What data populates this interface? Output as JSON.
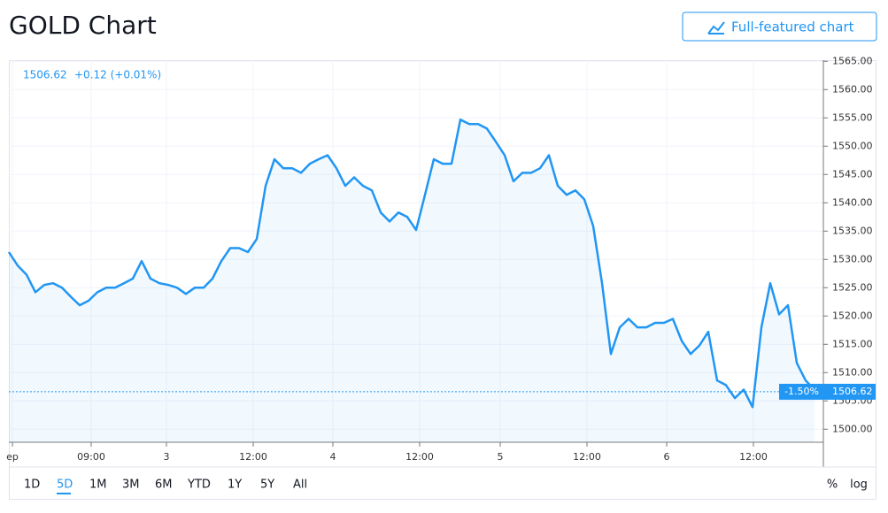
{
  "header": {
    "title": "GOLD Chart",
    "button": "Full-featured chart"
  },
  "chart_data": {
    "type": "line",
    "readout": {
      "price": "1506.62",
      "change": "+0.12 (+0.01%)"
    },
    "last_price": 1506.62,
    "last_label": "1506.62",
    "change_tag": "-1.50%",
    "x": [
      0,
      1,
      2,
      3,
      4,
      5,
      6,
      7,
      8,
      9,
      10,
      11,
      12,
      13,
      14,
      15,
      16,
      17,
      18,
      19,
      20,
      21,
      22,
      23,
      24,
      25,
      26,
      27,
      28,
      29,
      30,
      31,
      32,
      33,
      34,
      35,
      36,
      37,
      38,
      39,
      40,
      41,
      42,
      43,
      44,
      45,
      46,
      47,
      48,
      49,
      50,
      51,
      52,
      53,
      54,
      55,
      56,
      57,
      58,
      59,
      60,
      61,
      62,
      63,
      64,
      65,
      66,
      67,
      68,
      69,
      70,
      71,
      72,
      73,
      74,
      75,
      76,
      77,
      78,
      79,
      80,
      81,
      82,
      83,
      84,
      85,
      86,
      87,
      88,
      89,
      90,
      91
    ],
    "series": [
      {
        "name": "GOLD",
        "color": "#2196f3",
        "values": [
          1531.3,
          1528.9,
          1527.3,
          1524.2,
          1525.5,
          1525.8,
          1525.0,
          1523.4,
          1521.9,
          1522.7,
          1524.2,
          1525.0,
          1525.0,
          1525.8,
          1526.6,
          1529.7,
          1526.6,
          1525.8,
          1525.5,
          1525.0,
          1523.9,
          1525.0,
          1525.0,
          1526.6,
          1529.7,
          1532.0,
          1532.0,
          1531.3,
          1533.6,
          1543.0,
          1547.7,
          1546.1,
          1546.1,
          1545.3,
          1546.9,
          1547.7,
          1548.4,
          1546.1,
          1543.0,
          1544.5,
          1543.0,
          1542.2,
          1538.3,
          1536.7,
          1538.3,
          1537.5,
          1535.2,
          1541.4,
          1547.7,
          1546.9,
          1546.9,
          1554.7,
          1553.9,
          1553.9,
          1553.1,
          1550.8,
          1548.4,
          1543.8,
          1545.3,
          1545.3,
          1546.1,
          1548.4,
          1543.0,
          1541.4,
          1542.2,
          1540.6,
          1535.9,
          1525.8,
          1513.3,
          1518.0,
          1519.5,
          1518.0,
          1518.0,
          1518.8,
          1518.8,
          1519.5,
          1515.6,
          1513.3,
          1514.8,
          1517.2,
          1508.6,
          1507.8,
          1505.5,
          1507.0,
          1503.9,
          1518.0,
          1525.8,
          1520.3,
          1521.9,
          1511.7,
          1508.6,
          1507.0
        ]
      }
    ],
    "xlim": [
      0,
      92
    ],
    "xticks": [
      {
        "value": 0.4,
        "label": "ep"
      },
      {
        "value": 9.3,
        "label": "09:00"
      },
      {
        "value": 17.8,
        "label": "3"
      },
      {
        "value": 27.6,
        "label": "12:00"
      },
      {
        "value": 36.6,
        "label": "4"
      },
      {
        "value": 46.4,
        "label": "12:00"
      },
      {
        "value": 55.5,
        "label": "5"
      },
      {
        "value": 65.3,
        "label": "12:00"
      },
      {
        "value": 74.3,
        "label": "6"
      },
      {
        "value": 84.1,
        "label": "12:00"
      }
    ],
    "ylim": [
      1497.7,
      1565.2
    ],
    "yticks": [
      {
        "value": 1500,
        "label": "1500.00"
      },
      {
        "value": 1505,
        "label": "1505.00"
      },
      {
        "value": 1510,
        "label": "1510.00"
      },
      {
        "value": 1515,
        "label": "1515.00"
      },
      {
        "value": 1520,
        "label": "1520.00"
      },
      {
        "value": 1525,
        "label": "1525.00"
      },
      {
        "value": 1530,
        "label": "1530.00"
      },
      {
        "value": 1535,
        "label": "1535.00"
      },
      {
        "value": 1540,
        "label": "1540.00"
      },
      {
        "value": 1545,
        "label": "1545.00"
      },
      {
        "value": 1550,
        "label": "1550.00"
      },
      {
        "value": 1555,
        "label": "1555.00"
      },
      {
        "value": 1560,
        "label": "1560.00"
      },
      {
        "value": 1565,
        "label": "1565.00"
      }
    ],
    "grid": true,
    "ranges": [
      "1D",
      "5D",
      "1M",
      "3M",
      "6M",
      "YTD",
      "1Y",
      "5Y",
      "All"
    ],
    "active_range": 1,
    "scale_options": [
      "%",
      "log"
    ]
  }
}
